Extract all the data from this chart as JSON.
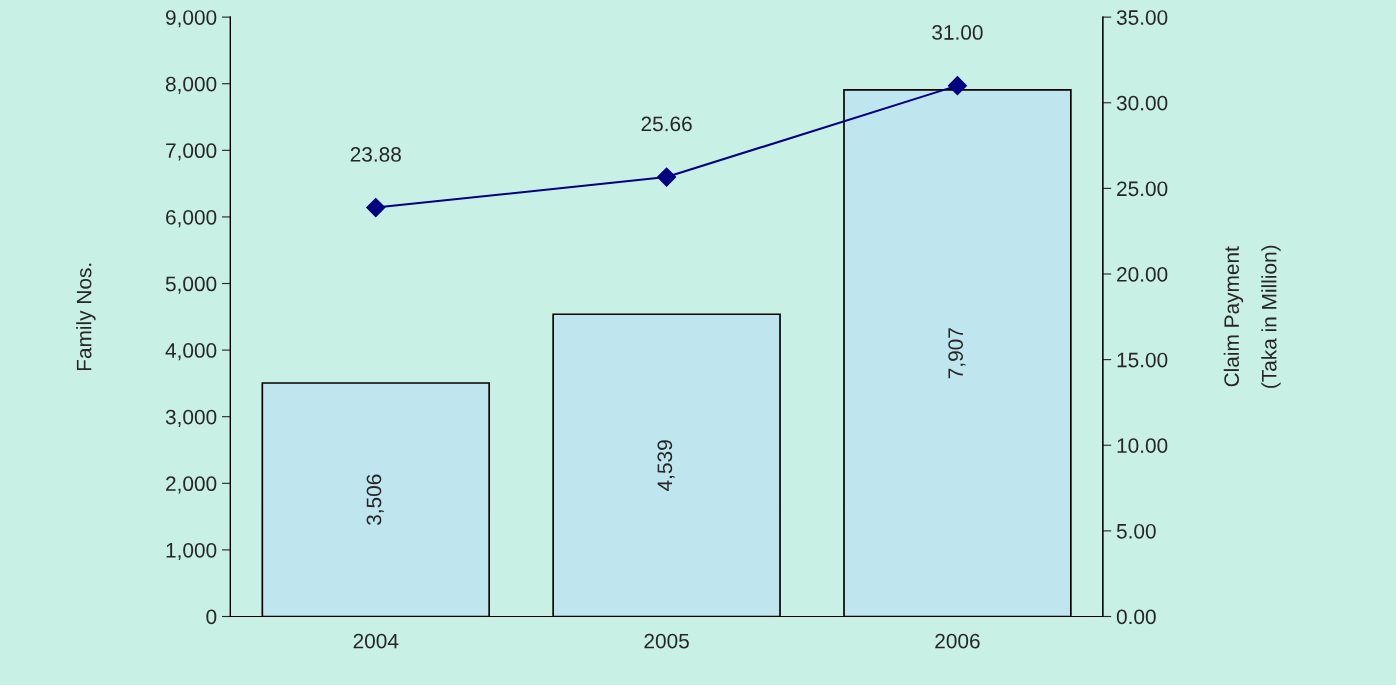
{
  "chart_data": {
    "type": "bar",
    "categories": [
      "2004",
      "2005",
      "2006"
    ],
    "ylabel": "Family Nos.",
    "y2label": "Claim Payment\n(Taka in Million)",
    "ylim": [
      0,
      9000
    ],
    "yticks": [
      {
        "value": 0,
        "label": "0"
      },
      {
        "value": 1000,
        "label": "1,000"
      },
      {
        "value": 2000,
        "label": "2,000"
      },
      {
        "value": 3000,
        "label": "3,000"
      },
      {
        "value": 4000,
        "label": "4,000"
      },
      {
        "value": 5000,
        "label": "5,000"
      },
      {
        "value": 6000,
        "label": "6,000"
      },
      {
        "value": 7000,
        "label": "7,000"
      },
      {
        "value": 8000,
        "label": "8,000"
      },
      {
        "value": 9000,
        "label": "9,000"
      }
    ],
    "y2lim": [
      0,
      35
    ],
    "y2ticks": [
      {
        "value": 0,
        "label": "0.00"
      },
      {
        "value": 5,
        "label": "5.00"
      },
      {
        "value": 10,
        "label": "10.00"
      },
      {
        "value": 15,
        "label": "15.00"
      },
      {
        "value": 20,
        "label": "20.00"
      },
      {
        "value": 25,
        "label": "25.00"
      },
      {
        "value": 30,
        "label": "30.00"
      },
      {
        "value": 35,
        "label": "35.00"
      }
    ],
    "series": [
      {
        "color": "#bfe6ee",
        "values": [
          3506,
          4539,
          7907
        ],
        "value_labels": [
          "3,506",
          "4,539",
          "7,907"
        ]
      },
      {
        "type": "line",
        "axis": "y2",
        "color": "#000080",
        "marker": "diamond",
        "values": [
          23.88,
          25.66,
          31.0
        ],
        "value_labels": [
          "23.88",
          "25.66",
          "31.00"
        ]
      }
    ],
    "grid": false,
    "legend": false
  }
}
